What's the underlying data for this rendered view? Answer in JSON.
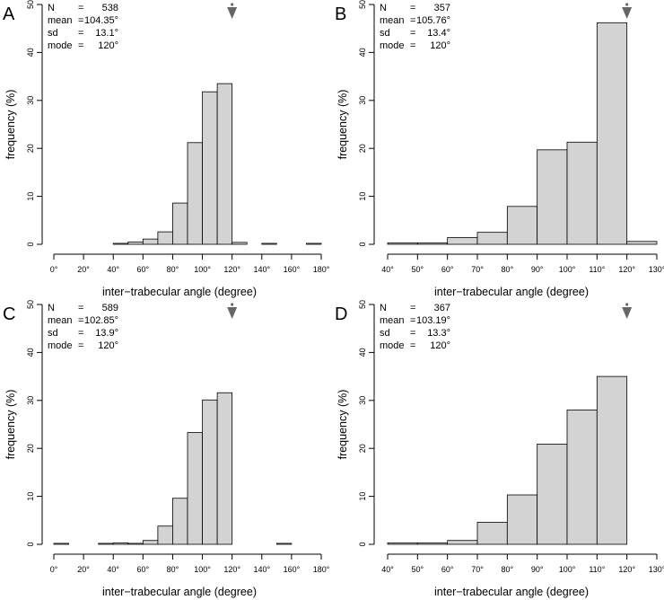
{
  "chart_data": [
    {
      "panel": "A",
      "type": "bar",
      "stats": [
        {
          "label": "N",
          "eq": "=",
          "value": "538"
        },
        {
          "label": "mean",
          "eq": "=",
          "value": "104.35°"
        },
        {
          "label": "sd",
          "eq": "=",
          "value": "13.1°"
        },
        {
          "label": "mode",
          "eq": "=",
          "value": "120°"
        }
      ],
      "xlabel": "inter−trabecular angle (degree)",
      "ylabel": "frequency (%)",
      "xlim": [
        0,
        180
      ],
      "ylim": [
        0,
        50
      ],
      "xticks": [
        0,
        20,
        40,
        60,
        80,
        100,
        120,
        140,
        160,
        180
      ],
      "xtick_labels": [
        "0°",
        "20°",
        "40°",
        "60°",
        "80°",
        "100°",
        "120°",
        "140°",
        "160°",
        "180°"
      ],
      "yticks": [
        0,
        10,
        20,
        30,
        40,
        50
      ],
      "marker_x": 120,
      "bins": [
        {
          "x0": 40,
          "x1": 50,
          "value": 0.2
        },
        {
          "x0": 50,
          "x1": 60,
          "value": 0.5
        },
        {
          "x0": 60,
          "x1": 70,
          "value": 1.1
        },
        {
          "x0": 70,
          "x1": 80,
          "value": 2.6
        },
        {
          "x0": 80,
          "x1": 90,
          "value": 8.6
        },
        {
          "x0": 90,
          "x1": 100,
          "value": 21.2
        },
        {
          "x0": 100,
          "x1": 110,
          "value": 31.8
        },
        {
          "x0": 110,
          "x1": 120,
          "value": 33.5
        },
        {
          "x0": 120,
          "x1": 130,
          "value": 0.4
        },
        {
          "x0": 140,
          "x1": 150,
          "value": 0.2
        },
        {
          "x0": 170,
          "x1": 180,
          "value": 0.2
        }
      ]
    },
    {
      "panel": "B",
      "type": "bar",
      "stats": [
        {
          "label": "N",
          "eq": "=",
          "value": "357"
        },
        {
          "label": "mean",
          "eq": "=",
          "value": "105.76°"
        },
        {
          "label": "sd",
          "eq": "=",
          "value": "13.4°"
        },
        {
          "label": "mode",
          "eq": "=",
          "value": "120°"
        }
      ],
      "xlabel": "inter−trabecular angle (degree)",
      "ylabel": "frequency (%)",
      "xlim": [
        40,
        130
      ],
      "ylim": [
        0,
        50
      ],
      "xticks": [
        40,
        50,
        60,
        70,
        80,
        90,
        100,
        110,
        120,
        130
      ],
      "xtick_labels": [
        "40°",
        "50°",
        "60°",
        "70°",
        "80°",
        "90°",
        "100°",
        "110°",
        "120°",
        "130°"
      ],
      "yticks": [
        0,
        10,
        20,
        30,
        40,
        50
      ],
      "marker_x": 120,
      "bins": [
        {
          "x0": 40,
          "x1": 50,
          "value": 0.3
        },
        {
          "x0": 50,
          "x1": 60,
          "value": 0.3
        },
        {
          "x0": 60,
          "x1": 70,
          "value": 1.4
        },
        {
          "x0": 70,
          "x1": 80,
          "value": 2.5
        },
        {
          "x0": 80,
          "x1": 90,
          "value": 7.9
        },
        {
          "x0": 90,
          "x1": 100,
          "value": 19.7
        },
        {
          "x0": 100,
          "x1": 110,
          "value": 21.3
        },
        {
          "x0": 110,
          "x1": 120,
          "value": 46.2
        },
        {
          "x0": 120,
          "x1": 130,
          "value": 0.6
        }
      ]
    },
    {
      "panel": "C",
      "type": "bar",
      "stats": [
        {
          "label": "N",
          "eq": "=",
          "value": "589"
        },
        {
          "label": "mean",
          "eq": "=",
          "value": "102.85°"
        },
        {
          "label": "sd",
          "eq": "=",
          "value": "13.9°"
        },
        {
          "label": "mode",
          "eq": "=",
          "value": "120°"
        }
      ],
      "xlabel": "inter−trabecular angle (degree)",
      "ylabel": "frequency (%)",
      "xlim": [
        0,
        180
      ],
      "ylim": [
        0,
        50
      ],
      "xticks": [
        0,
        20,
        40,
        60,
        80,
        100,
        120,
        140,
        160,
        180
      ],
      "xtick_labels": [
        "0°",
        "20°",
        "40°",
        "60°",
        "80°",
        "100°",
        "120°",
        "140°",
        "160°",
        "180°"
      ],
      "yticks": [
        0,
        10,
        20,
        30,
        40,
        50
      ],
      "marker_x": 120,
      "bins": [
        {
          "x0": 0,
          "x1": 10,
          "value": 0.2
        },
        {
          "x0": 30,
          "x1": 40,
          "value": 0.2
        },
        {
          "x0": 40,
          "x1": 50,
          "value": 0.3
        },
        {
          "x0": 50,
          "x1": 60,
          "value": 0.2
        },
        {
          "x0": 60,
          "x1": 70,
          "value": 0.8
        },
        {
          "x0": 70,
          "x1": 80,
          "value": 3.8
        },
        {
          "x0": 80,
          "x1": 90,
          "value": 9.6
        },
        {
          "x0": 90,
          "x1": 100,
          "value": 23.3
        },
        {
          "x0": 100,
          "x1": 110,
          "value": 30.1
        },
        {
          "x0": 110,
          "x1": 120,
          "value": 31.6
        },
        {
          "x0": 150,
          "x1": 160,
          "value": 0.2
        }
      ]
    },
    {
      "panel": "D",
      "type": "bar",
      "stats": [
        {
          "label": "N",
          "eq": "=",
          "value": "367"
        },
        {
          "label": "mean",
          "eq": "=",
          "value": "103.19°"
        },
        {
          "label": "sd",
          "eq": "=",
          "value": "13.3°"
        },
        {
          "label": "mode",
          "eq": "=",
          "value": "120°"
        }
      ],
      "xlabel": "inter−trabecular angle (degree)",
      "ylabel": "frequency (%)",
      "xlim": [
        40,
        130
      ],
      "ylim": [
        0,
        50
      ],
      "xticks": [
        40,
        50,
        60,
        70,
        80,
        90,
        100,
        110,
        120,
        130
      ],
      "xtick_labels": [
        "40°",
        "50°",
        "60°",
        "70°",
        "80°",
        "90°",
        "100°",
        "110°",
        "120°",
        "130°"
      ],
      "yticks": [
        0,
        10,
        20,
        30,
        40,
        50
      ],
      "marker_x": 120,
      "bins": [
        {
          "x0": 40,
          "x1": 50,
          "value": 0.3
        },
        {
          "x0": 50,
          "x1": 60,
          "value": 0.3
        },
        {
          "x0": 60,
          "x1": 70,
          "value": 0.8
        },
        {
          "x0": 70,
          "x1": 80,
          "value": 4.6
        },
        {
          "x0": 80,
          "x1": 90,
          "value": 10.3
        },
        {
          "x0": 90,
          "x1": 100,
          "value": 20.9
        },
        {
          "x0": 100,
          "x1": 110,
          "value": 28.0
        },
        {
          "x0": 110,
          "x1": 120,
          "value": 35.0
        }
      ]
    }
  ],
  "style": {
    "bar_fill": "#d3d3d3",
    "bar_stroke": "#000000",
    "marker_color": "#666666"
  }
}
